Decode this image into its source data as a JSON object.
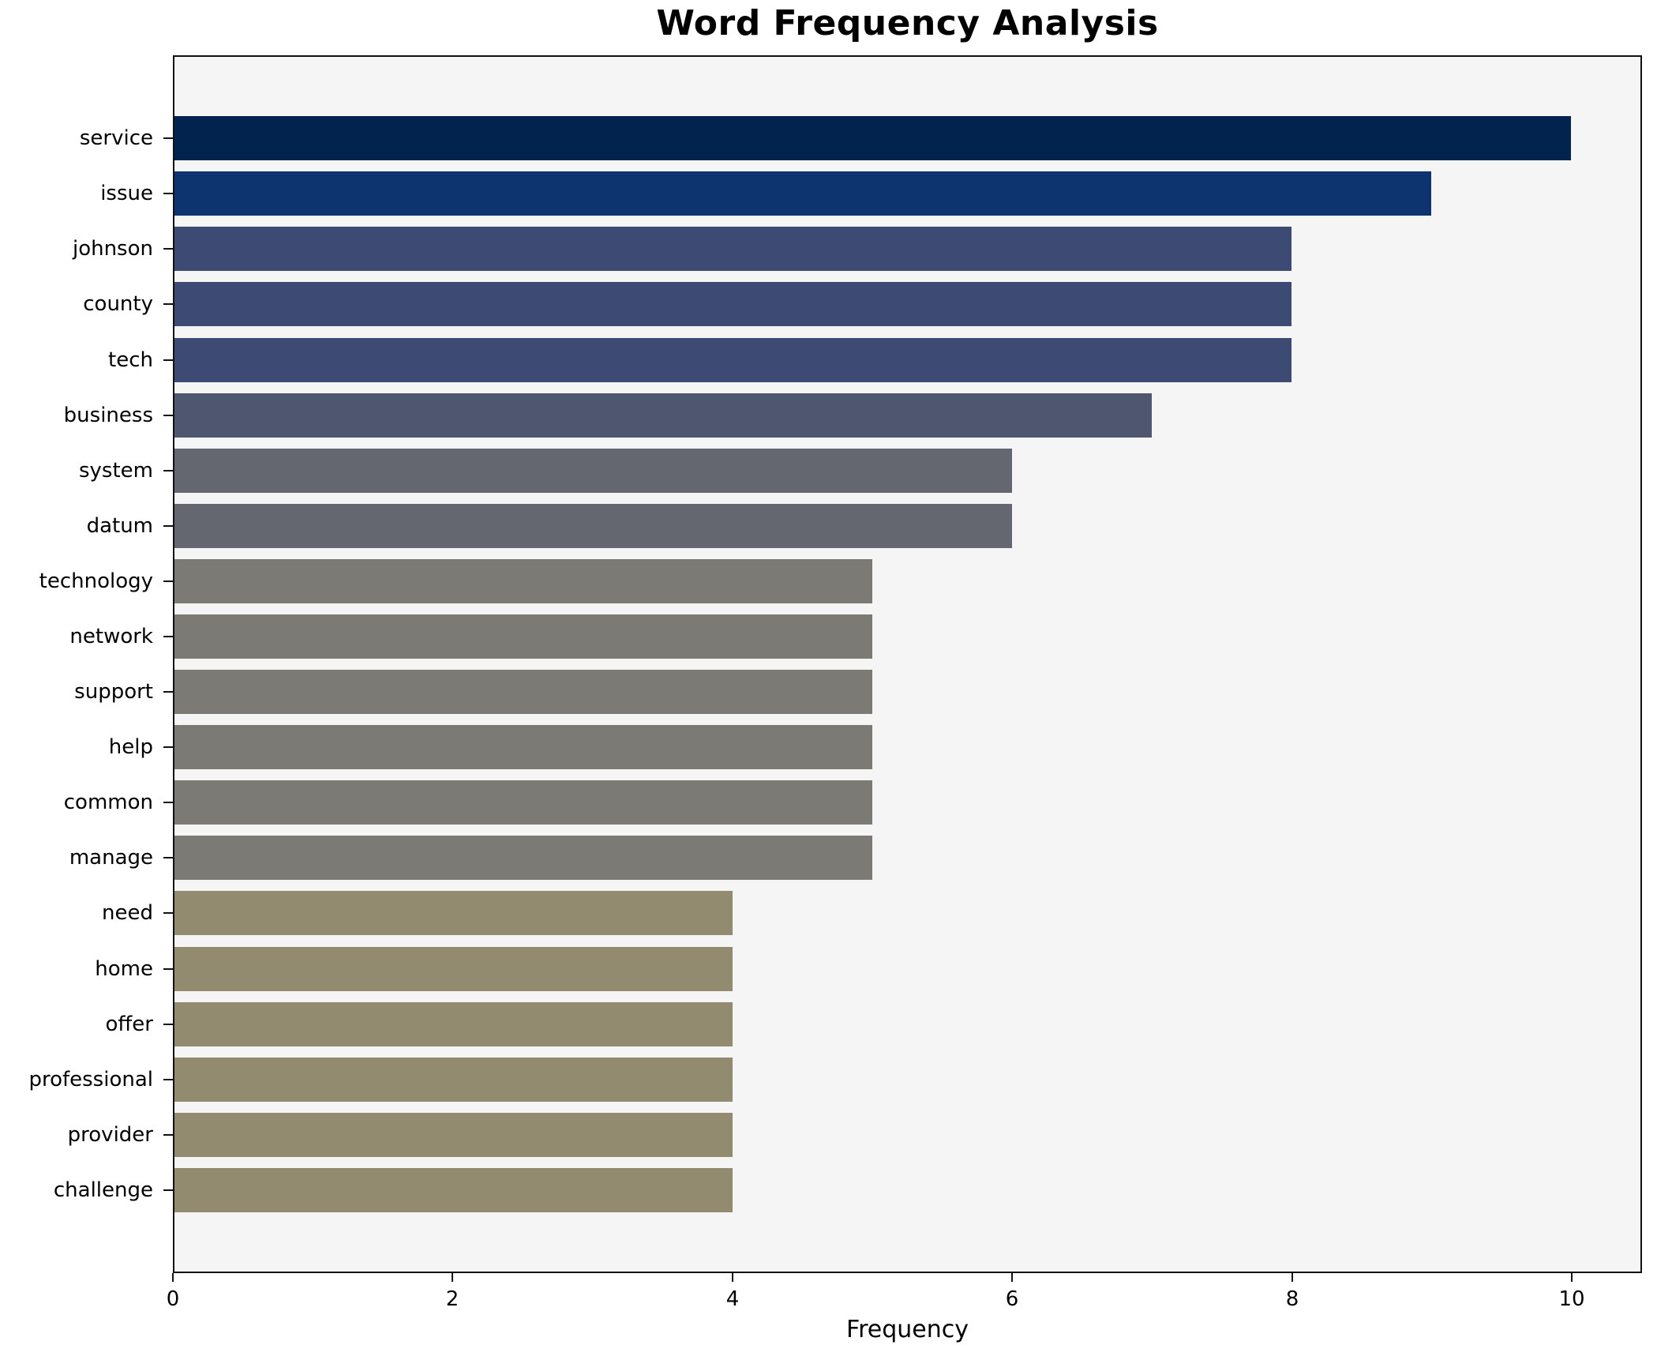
{
  "chart_data": {
    "type": "bar",
    "orientation": "horizontal",
    "title": "Word Frequency Analysis",
    "xlabel": "Frequency",
    "ylabel": "",
    "categories": [
      "service",
      "issue",
      "johnson",
      "county",
      "tech",
      "business",
      "system",
      "datum",
      "technology",
      "network",
      "support",
      "help",
      "common",
      "manage",
      "need",
      "home",
      "offer",
      "professional",
      "provider",
      "challenge"
    ],
    "values": [
      10,
      9,
      8,
      8,
      8,
      7,
      6,
      6,
      5,
      5,
      5,
      5,
      5,
      5,
      4,
      4,
      4,
      4,
      4,
      4
    ],
    "bar_colors": [
      "#02234e",
      "#0e3470",
      "#3c4a74",
      "#3c4a74",
      "#3c4a74",
      "#4e576f",
      "#64676f",
      "#64676f",
      "#7b7a75",
      "#7b7a75",
      "#7b7a75",
      "#7b7a75",
      "#7b7a75",
      "#7b7a75",
      "#928b70",
      "#928b70",
      "#928b70",
      "#928b70",
      "#928b70",
      "#928b70"
    ],
    "xlim": [
      0,
      10.5
    ],
    "xticks": [
      0,
      2,
      4,
      6,
      8,
      10
    ],
    "grid": false,
    "legend": "none",
    "bar_height_ratio": 0.8,
    "plot_bg": "#f5f5f6",
    "figure_bg": "#ffffff",
    "spine_color": "#111111",
    "text_color": "#000000"
  }
}
